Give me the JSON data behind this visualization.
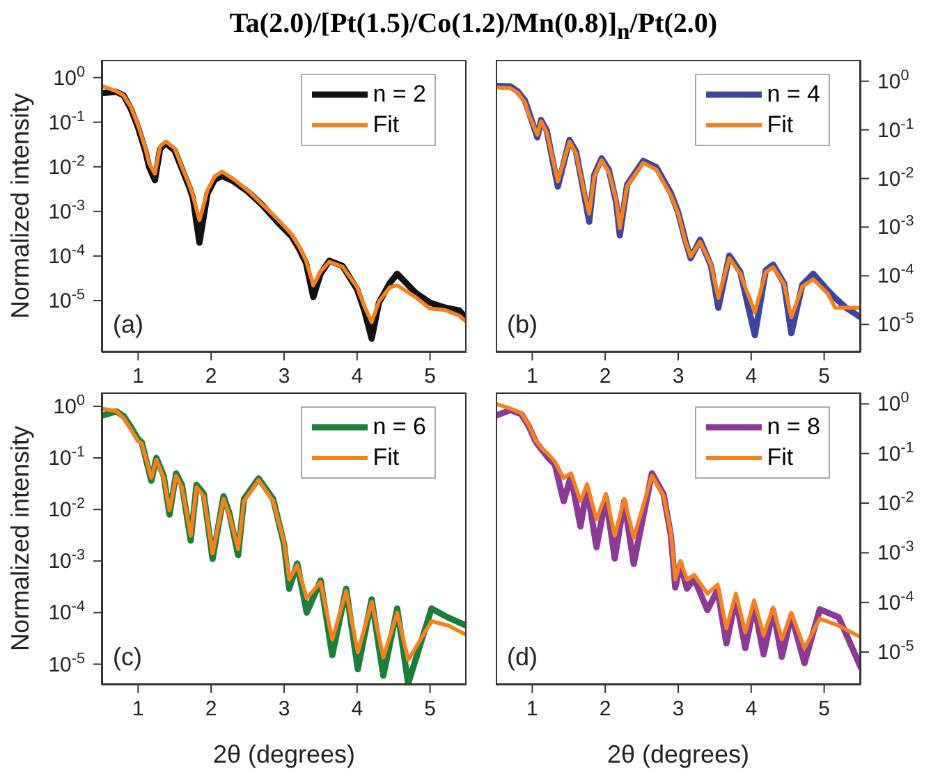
{
  "chart_data": [
    {
      "type": "line",
      "title": "Ta(2.0)/[Pt(1.5)/Co(1.2)/Mn(0.8)]$_{n}$/Pt(2.0)",
      "ylabel": "Normalized intensity",
      "annotations": [
        "(a)"
      ],
      "log": "y",
      "legend": "top right",
      "xlim": [
        0.5,
        5.5
      ],
      "xticks": [
        1,
        2,
        3,
        4,
        5
      ],
      "ylim": [
        7e-07,
        2.5
      ],
      "yticks": [
        {
          "value": 1e-05,
          "label": "10$^{-5}$"
        },
        {
          "value": 0.0001,
          "label": "10$^{-4}$"
        },
        {
          "value": 0.001,
          "label": "10$^{-3}$"
        },
        {
          "value": 0.01,
          "label": "10$^{-2}$"
        },
        {
          "value": 0.1,
          "label": "10$^{-1}$"
        },
        {
          "value": 1,
          "label": "10$^{0}$"
        }
      ],
      "x": [
        0.5,
        0.7,
        0.8,
        0.9,
        1.0,
        1.1,
        1.15,
        1.23,
        1.3,
        1.38,
        1.5,
        1.6,
        1.7,
        1.75,
        1.84,
        1.95,
        2.05,
        2.15,
        2.3,
        2.5,
        2.7,
        2.9,
        3.1,
        3.2,
        3.3,
        3.4,
        3.5,
        3.62,
        3.8,
        4.0,
        4.1,
        4.2,
        4.3,
        4.45,
        4.55,
        4.8,
        5.0,
        5.2,
        5.4,
        5.5
      ],
      "series": [
        {
          "name": "n = 2",
          "color": "#111111",
          "values": [
            0.45,
            0.48,
            0.4,
            0.2,
            0.075,
            0.022,
            0.01,
            0.005,
            0.025,
            0.034,
            0.023,
            0.009,
            0.0035,
            0.002,
            0.0002,
            0.0025,
            0.0052,
            0.0062,
            0.0048,
            0.0028,
            0.0014,
            0.0006,
            0.00028,
            0.00015,
            7e-05,
            1.2e-05,
            4e-05,
            7.8e-05,
            6e-05,
            1.8e-05,
            6e-06,
            1.4e-06,
            9e-06,
            2.5e-05,
            4e-05,
            1.5e-05,
            9e-06,
            7e-06,
            6e-06,
            4e-06
          ]
        },
        {
          "name": "Fit",
          "color": "#f5821f",
          "values": [
            0.65,
            0.5,
            0.4,
            0.22,
            0.085,
            0.026,
            0.012,
            0.007,
            0.029,
            0.037,
            0.026,
            0.01,
            0.004,
            0.0023,
            0.00063,
            0.003,
            0.0061,
            0.0078,
            0.0054,
            0.003,
            0.00145,
            0.0007,
            0.00031,
            0.00017,
            8e-05,
            2.2e-05,
            4.5e-05,
            7.4e-05,
            5.8e-05,
            2e-05,
            7.5e-06,
            3.3e-06,
            9.6e-06,
            2e-05,
            2.2e-05,
            1.2e-05,
            6.6e-06,
            6.2e-06,
            4.6e-06,
            3.3e-06
          ]
        }
      ]
    },
    {
      "type": "line",
      "annotations": [
        "(b)"
      ],
      "log": "y2",
      "legend": "top right",
      "xlim": [
        0.5,
        5.5
      ],
      "xticks": [
        1,
        2,
        3,
        4,
        5
      ],
      "y2lim": [
        2.7e-06,
        2.75
      ],
      "y2ticks": [
        {
          "value": 1e-05,
          "label": "10$^{-5}$"
        },
        {
          "value": 0.0001,
          "label": "10$^{-4}$"
        },
        {
          "value": 0.001,
          "label": "10$^{-3}$"
        },
        {
          "value": 0.01,
          "label": "10$^{-2}$"
        },
        {
          "value": 0.1,
          "label": "10$^{-1}$"
        },
        {
          "value": 1,
          "label": "10$^{0}$"
        }
      ],
      "x": [
        0.5,
        0.7,
        0.8,
        0.9,
        0.95,
        1.07,
        1.12,
        1.2,
        1.35,
        1.51,
        1.6,
        1.72,
        1.78,
        1.85,
        1.95,
        2.05,
        2.15,
        2.2,
        2.3,
        2.52,
        2.7,
        2.9,
        3.0,
        3.1,
        3.17,
        3.3,
        3.45,
        3.55,
        3.7,
        3.85,
        4.05,
        4.2,
        4.3,
        4.45,
        4.55,
        4.7,
        4.85,
        5.05,
        5.15,
        5.3,
        5.5
      ],
      "series": [
        {
          "name": "n = 4",
          "color": "#3c46a0",
          "axis": "y2",
          "values": [
            0.8,
            0.78,
            0.62,
            0.4,
            0.24,
            0.07,
            0.16,
            0.095,
            0.0068,
            0.062,
            0.036,
            0.004,
            0.0013,
            0.012,
            0.026,
            0.015,
            0.0032,
            0.00068,
            0.0075,
            0.023,
            0.017,
            0.005,
            0.002,
            0.00052,
            0.00023,
            0.00055,
            0.00016,
            2.2e-05,
            0.00026,
            0.00012,
            6e-06,
            0.00013,
            0.00017,
            7e-05,
            6.6e-06,
            6.5e-05,
            0.00011,
            5e-05,
            3.5e-05,
            2.2e-05,
            1.4e-05
          ]
        },
        {
          "name": "Fit",
          "color": "#f5821f",
          "axis": "y2",
          "values": [
            0.75,
            0.72,
            0.58,
            0.37,
            0.21,
            0.079,
            0.15,
            0.088,
            0.0087,
            0.057,
            0.033,
            0.0045,
            0.0019,
            0.011,
            0.024,
            0.0136,
            0.0036,
            0.00095,
            0.0071,
            0.021,
            0.0152,
            0.0045,
            0.0019,
            0.0005,
            0.00025,
            0.0005,
            0.00017,
            3.5e-05,
            0.00023,
            0.00011,
            1.8e-05,
            0.00012,
            0.00015,
            6.8e-05,
            1.4e-05,
            6e-05,
            8.5e-05,
            4.3e-05,
            2.2e-05,
            2.2e-05,
            2.2e-05
          ]
        }
      ]
    },
    {
      "type": "line",
      "xlabel": "2θ (degrees)",
      "ylabel": "Normalized intensity",
      "annotations": [
        "(c)"
      ],
      "log": "y",
      "legend": "top right",
      "xlim": [
        0.5,
        5.5
      ],
      "xticks": [
        1,
        2,
        3,
        4,
        5
      ],
      "ylim": [
        4e-06,
        1.86
      ],
      "yticks": [
        {
          "value": 1e-05,
          "label": "10$^{-5}$"
        },
        {
          "value": 0.0001,
          "label": "10$^{-4}$"
        },
        {
          "value": 0.001,
          "label": "10$^{-3}$"
        },
        {
          "value": 0.01,
          "label": "10$^{-2}$"
        },
        {
          "value": 0.1,
          "label": "10$^{-1}$"
        },
        {
          "value": 1,
          "label": "10$^{0}$"
        }
      ],
      "x": [
        0.5,
        0.7,
        0.8,
        0.9,
        1.0,
        1.05,
        1.18,
        1.25,
        1.35,
        1.43,
        1.52,
        1.6,
        1.72,
        1.8,
        1.9,
        2.02,
        2.17,
        2.25,
        2.37,
        2.45,
        2.65,
        2.85,
        3.0,
        3.07,
        3.18,
        3.31,
        3.5,
        3.66,
        3.85,
        4.01,
        4.2,
        4.36,
        4.55,
        4.7,
        5.02,
        5.25,
        5.5
      ],
      "series": [
        {
          "name": "n = 6",
          "color": "#1a7f3a",
          "values": [
            0.66,
            0.8,
            0.65,
            0.4,
            0.23,
            0.2,
            0.036,
            0.1,
            0.045,
            0.008,
            0.05,
            0.03,
            0.0025,
            0.03,
            0.02,
            0.0011,
            0.018,
            0.0085,
            0.0013,
            0.016,
            0.04,
            0.016,
            0.0021,
            0.00029,
            0.0009,
            0.0001,
            0.00042,
            1.5e-05,
            0.00029,
            8e-06,
            0.00018,
            6e-06,
            0.00012,
            4.2e-06,
            0.00012,
            8e-05,
            5.6e-05
          ]
        },
        {
          "name": "Fit",
          "color": "#f5821f",
          "values": [
            0.9,
            0.81,
            0.6,
            0.36,
            0.21,
            0.19,
            0.041,
            0.093,
            0.041,
            0.0096,
            0.045,
            0.027,
            0.0031,
            0.027,
            0.018,
            0.0014,
            0.016,
            0.0078,
            0.0017,
            0.0146,
            0.037,
            0.0146,
            0.0023,
            0.00044,
            0.00083,
            0.00019,
            0.00039,
            3e-05,
            0.00026,
            1.7e-05,
            0.00016,
            1.35e-05,
            0.0001,
            1.2e-05,
            6.8e-05,
            5.6e-05,
            3.7e-05
          ]
        }
      ]
    },
    {
      "type": "line",
      "xlabel": "2θ (degrees)",
      "annotations": [
        "(d)"
      ],
      "log": "y2",
      "legend": "top right",
      "xlim": [
        0.5,
        5.5
      ],
      "xticks": [
        1,
        2,
        3,
        4,
        5
      ],
      "y2lim": [
        2.2e-06,
        1.7
      ],
      "y2ticks": [
        {
          "value": 1e-05,
          "label": "10$^{-5}$"
        },
        {
          "value": 0.0001,
          "label": "10$^{-4}$"
        },
        {
          "value": 0.001,
          "label": "10$^{-3}$"
        },
        {
          "value": 0.01,
          "label": "10$^{-2}$"
        },
        {
          "value": 0.1,
          "label": "10$^{-1}$"
        },
        {
          "value": 1,
          "label": "10$^{0}$"
        }
      ],
      "x": [
        0.5,
        0.7,
        0.85,
        0.95,
        1.05,
        1.13,
        1.21,
        1.31,
        1.43,
        1.53,
        1.66,
        1.75,
        1.88,
        2.01,
        2.13,
        2.26,
        2.39,
        2.64,
        2.8,
        2.9,
        2.96,
        3.03,
        3.12,
        3.22,
        3.4,
        3.54,
        3.66,
        3.79,
        3.92,
        4.04,
        4.17,
        4.3,
        4.42,
        4.55,
        4.73,
        4.94,
        5.2,
        5.5
      ],
      "series": [
        {
          "name": "n = 8",
          "color": "#8b3a96",
          "axis": "y2",
          "values": [
            0.58,
            0.75,
            0.62,
            0.36,
            0.17,
            0.12,
            0.085,
            0.06,
            0.011,
            0.035,
            0.0034,
            0.02,
            0.0013,
            0.013,
            0.00077,
            0.011,
            0.0006,
            0.04,
            0.015,
            0.0022,
            0.0002,
            0.0006,
            0.00019,
            0.0003,
            7e-05,
            0.00018,
            1.5e-05,
            0.00012,
            1.2e-05,
            9e-05,
            9e-06,
            7e-05,
            8e-06,
            5.5e-05,
            6e-06,
            7.3e-05,
            5e-05,
            5e-06
          ]
        },
        {
          "name": "Fit",
          "color": "#f5821f",
          "axis": "y2",
          "values": [
            1.0,
            0.81,
            0.65,
            0.38,
            0.18,
            0.13,
            0.1,
            0.069,
            0.032,
            0.04,
            0.011,
            0.024,
            0.0047,
            0.0154,
            0.0022,
            0.0123,
            0.002,
            0.036,
            0.014,
            0.0025,
            0.00029,
            0.00069,
            0.00029,
            0.00036,
            0.00015,
            0.00023,
            3e-05,
            0.00015,
            2.5e-05,
            0.00011,
            2.2e-05,
            7.9e-05,
            1.8e-05,
            6.2e-05,
            1.2e-05,
            4.7e-05,
            3.4e-05,
            2e-05
          ]
        }
      ]
    }
  ]
}
